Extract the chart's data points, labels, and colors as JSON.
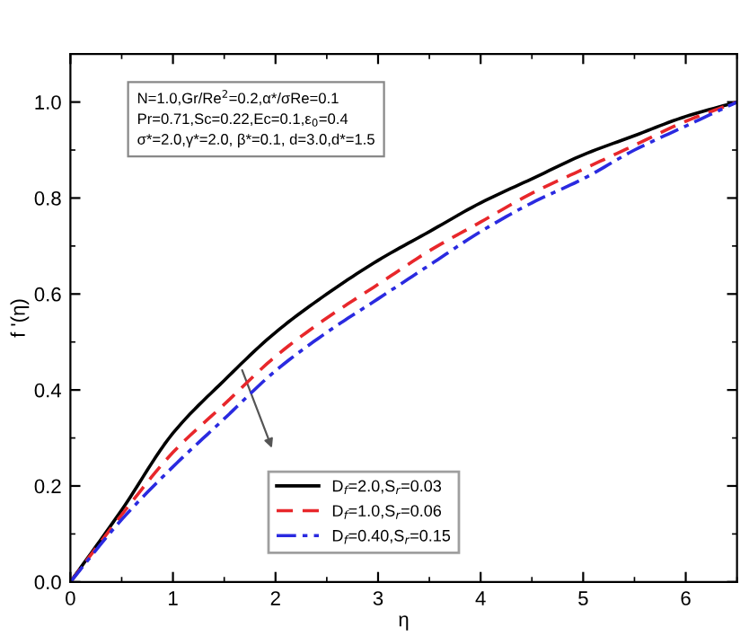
{
  "chart_data": {
    "type": "line",
    "xlabel": "η",
    "ylabel": "f '(η)",
    "x": [
      0,
      0.5,
      1,
      1.5,
      2,
      2.5,
      3,
      3.5,
      4,
      4.5,
      5,
      5.5,
      6,
      6.5
    ],
    "series": [
      {
        "name": "D$_{f}$=2.0,S$_{r}$=0.03",
        "color": "#000000",
        "line_style": "solid",
        "values": [
          0,
          0.15,
          0.31,
          0.42,
          0.52,
          0.6,
          0.67,
          0.73,
          0.79,
          0.84,
          0.89,
          0.93,
          0.97,
          1.0
        ]
      },
      {
        "name": "D$_{f}$=1.0,S$_{r}$=0.06",
        "color": "#e8272b",
        "line_style": "dashed",
        "values": [
          0,
          0.14,
          0.27,
          0.37,
          0.47,
          0.55,
          0.62,
          0.69,
          0.75,
          0.81,
          0.86,
          0.91,
          0.96,
          1.0
        ]
      },
      {
        "name": "D$_{f}$=0.40,S$_{r}$=0.15",
        "color": "#2a2ae0",
        "line_style": "dashdot",
        "values": [
          0,
          0.13,
          0.24,
          0.34,
          0.44,
          0.52,
          0.59,
          0.66,
          0.73,
          0.79,
          0.84,
          0.9,
          0.95,
          1.0
        ]
      }
    ],
    "annotations": [
      "N=1.0,Gr/Re$^{2}$=0.2,α*/σRe=0.1\nPr=0.71,Sc=0.22,Ec=0.1,ε$_{0}$=0.4\nσ*=2.0,γ*=2.0, β*=0.1, d=3.0,d*=1.5"
    ],
    "xlim": [
      0,
      6.5
    ],
    "xticks": [
      0,
      1,
      2,
      3,
      4,
      5,
      6
    ],
    "ylim": [
      0,
      1.1
    ],
    "yticks": [
      {
        "value": 0,
        "label": "0.0"
      },
      {
        "value": 0.2,
        "label": "0.2"
      },
      {
        "value": 0.4,
        "label": "0.4"
      },
      {
        "value": 0.6,
        "label": "0.6"
      },
      {
        "value": 0.8,
        "label": "0.8"
      },
      {
        "value": 1,
        "label": "1.0"
      }
    ],
    "grid": false,
    "legend": "bottom",
    "marker": "none"
  }
}
